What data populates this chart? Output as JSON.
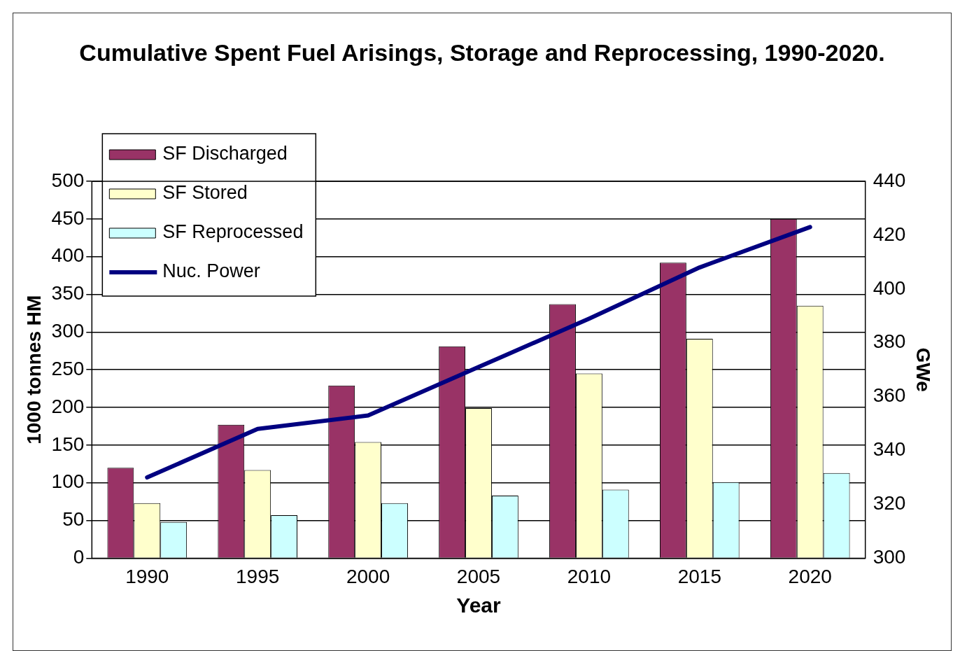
{
  "chart_data": {
    "type": "bar",
    "title": "Cumulative Spent Fuel Arisings, Storage and Reprocessing, 1990-2020.",
    "xlabel": "Year",
    "ylabel": "1000 tonnes HM",
    "y2label": "GWe",
    "categories": [
      "1990",
      "1995",
      "2000",
      "2005",
      "2010",
      "2015",
      "2020"
    ],
    "series": [
      {
        "name": "SF Discharged",
        "color": "#993366",
        "values": [
          120,
          177,
          229,
          281,
          337,
          392,
          450
        ]
      },
      {
        "name": "SF Stored",
        "color": "#ffffcc",
        "values": [
          73,
          117,
          154,
          199,
          245,
          291,
          335
        ]
      },
      {
        "name": "SF Reprocessed",
        "color": "#ccffff",
        "values": [
          48,
          57,
          73,
          83,
          91,
          101,
          113
        ]
      },
      {
        "name": "Nuc. Power",
        "type": "line",
        "axis": "y2",
        "color": "#000080",
        "values": [
          330,
          348,
          353,
          371,
          389,
          408,
          423
        ]
      }
    ],
    "ylim": [
      0,
      500
    ],
    "yticks": [
      0,
      50,
      100,
      150,
      200,
      250,
      300,
      350,
      400,
      450,
      500
    ],
    "y2lim": [
      300,
      440
    ],
    "y2ticks": [
      300,
      320,
      340,
      360,
      380,
      400,
      420,
      440
    ],
    "grid": "y",
    "legend": "top left",
    "marker": "none"
  }
}
